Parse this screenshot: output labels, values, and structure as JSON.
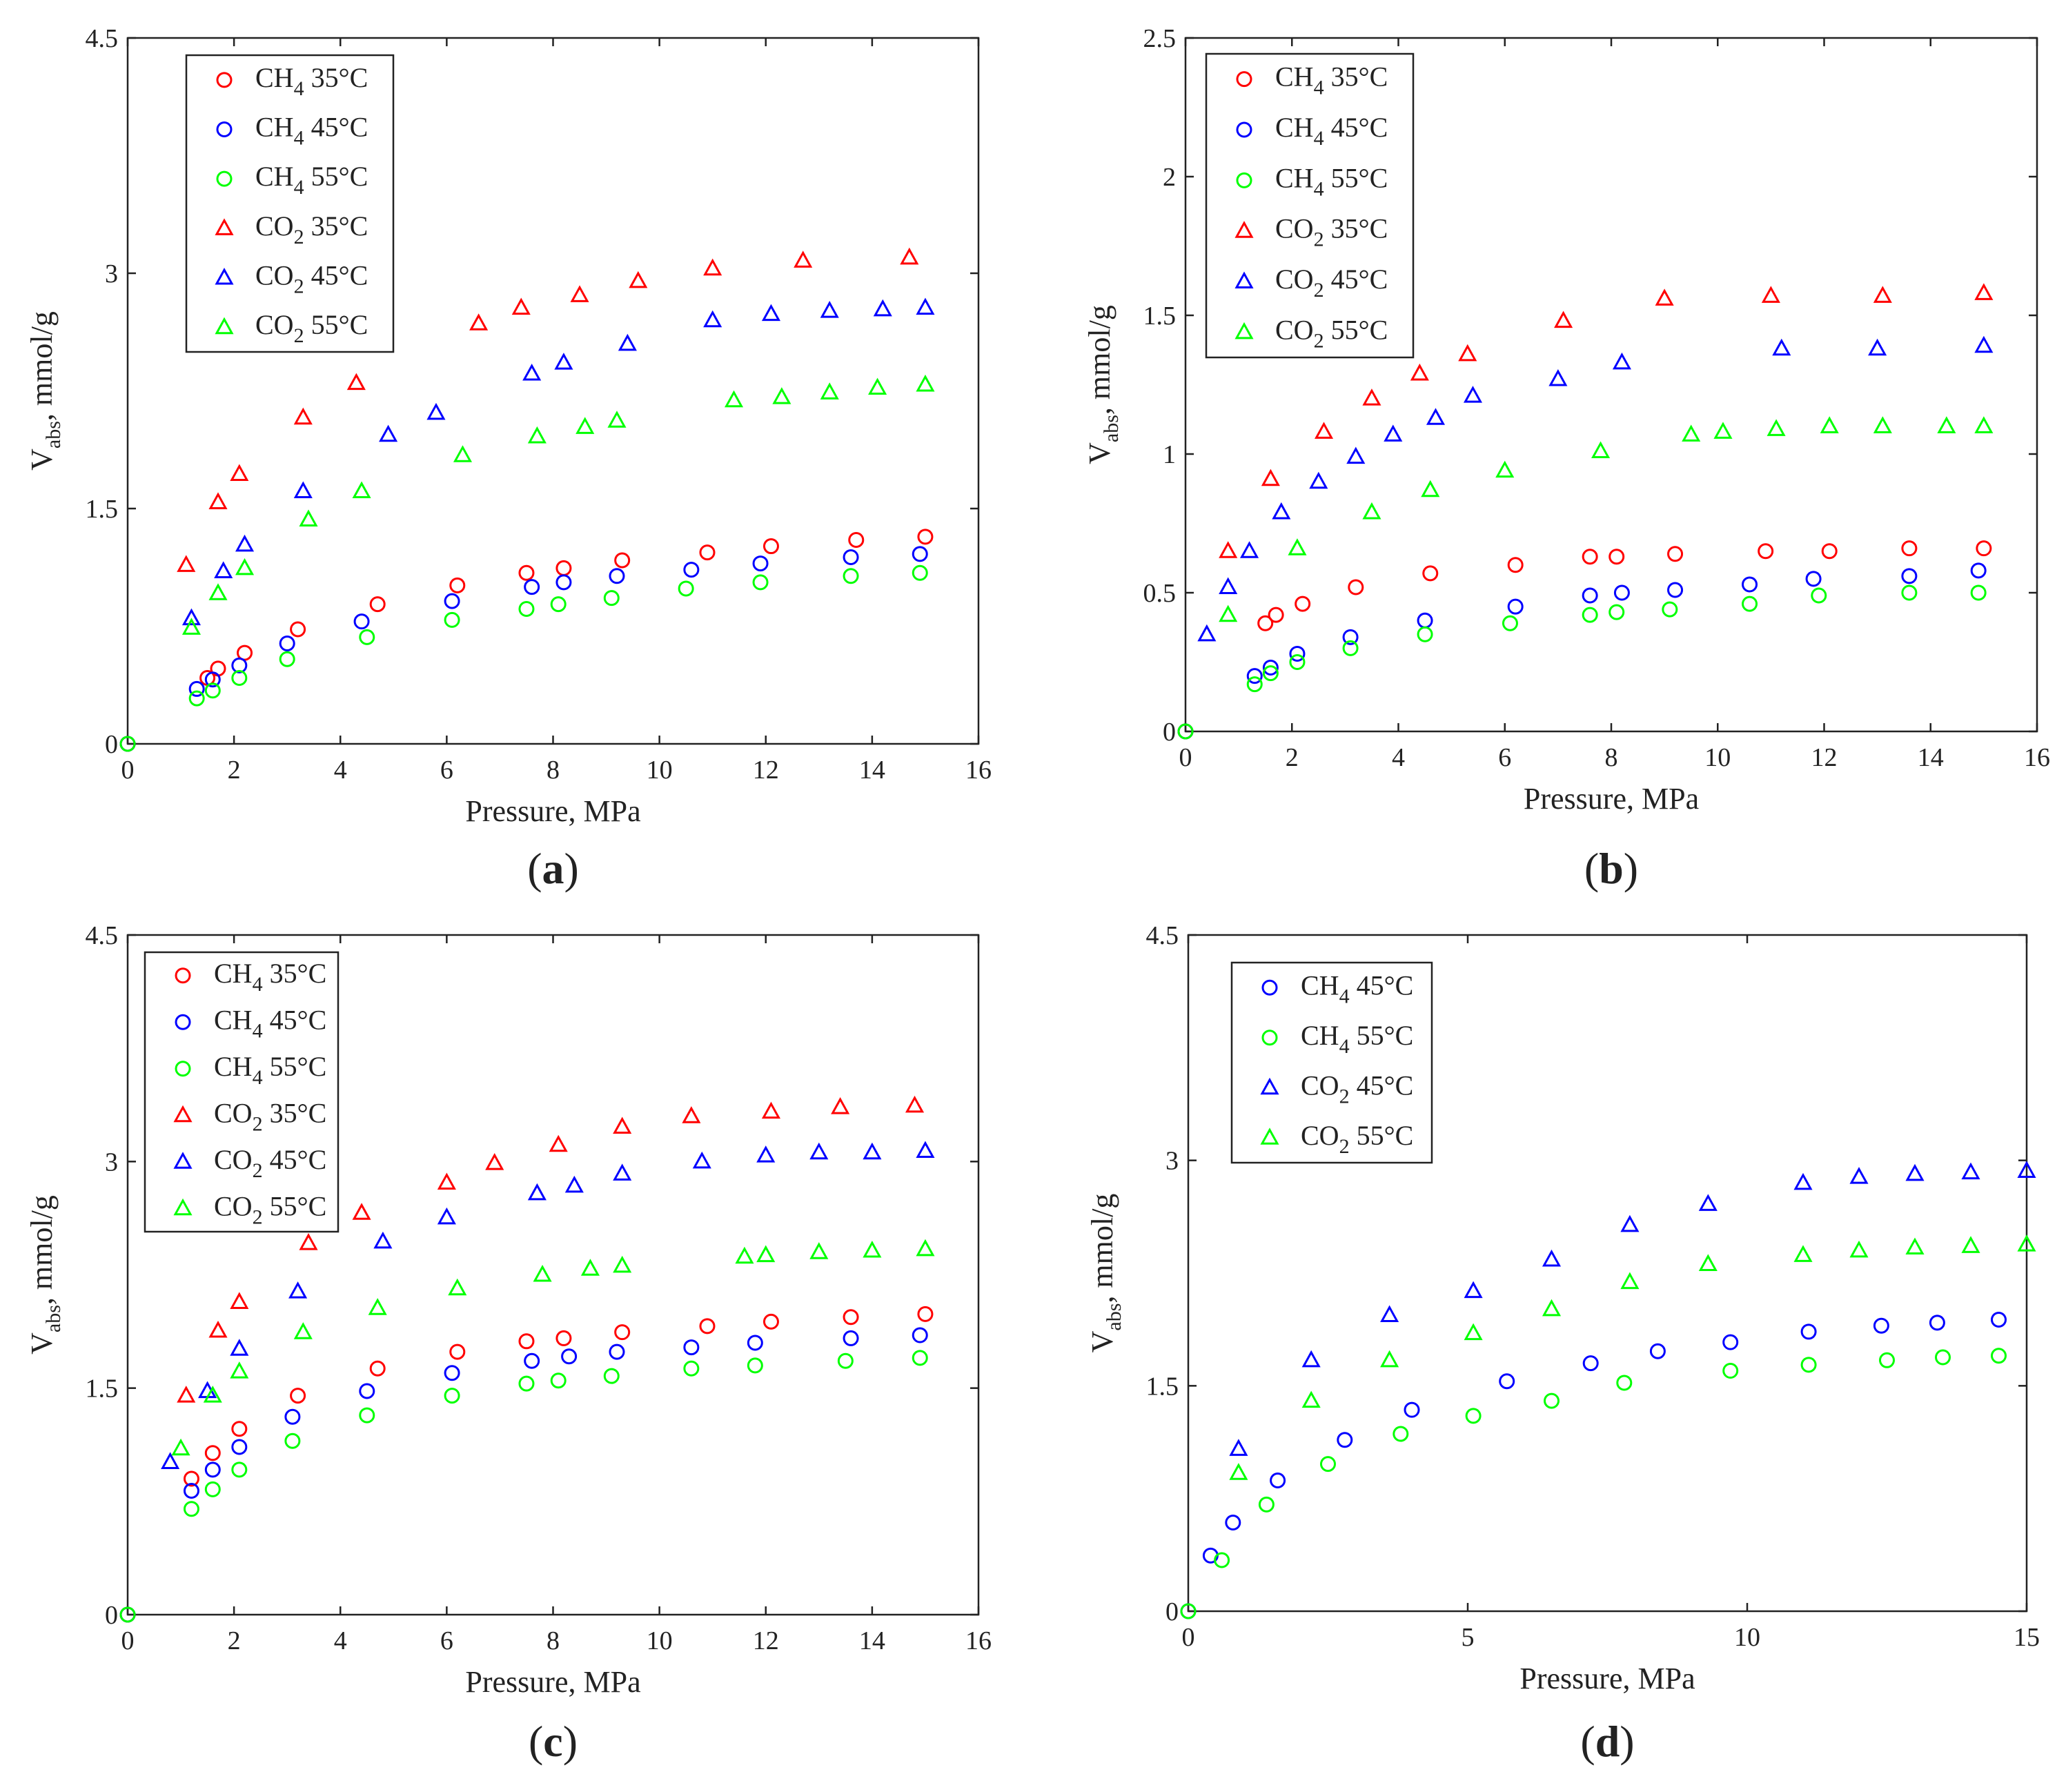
{
  "colors": {
    "red": "#ff0000",
    "blue": "#0000ff",
    "green": "#00ff00"
  },
  "chart_data": [
    {
      "type": "scatter",
      "panel_label": "a",
      "xlabel": "Pressure, MPa",
      "ylabel_main": "V",
      "ylabel_sub": "abs",
      "ylabel_rest": ", mmol/g",
      "xlim": [
        0,
        16
      ],
      "ylim": [
        0,
        4.5
      ],
      "xticks": [
        0,
        2,
        4,
        6,
        8,
        10,
        12,
        14,
        16
      ],
      "xtick_labels": [
        "0",
        "2",
        "4",
        "6",
        "8",
        "10",
        "12",
        "14",
        "16"
      ],
      "yticks": [
        0,
        1.5,
        3,
        4.5
      ],
      "ytick_labels": [
        "0",
        "1.5",
        "3",
        "4.5"
      ],
      "legend_position": "top-left",
      "series": [
        {
          "gas": "CH",
          "sub": "4",
          "temp": "35°C",
          "color": "red",
          "marker": "circle",
          "x": [
            0,
            1.5,
            1.7,
            2.2,
            3.2,
            4.7,
            6.2,
            7.5,
            8.2,
            9.3,
            10.9,
            12.1,
            13.7,
            15.0
          ],
          "y": [
            0,
            0.42,
            0.48,
            0.58,
            0.73,
            0.89,
            1.01,
            1.09,
            1.12,
            1.17,
            1.22,
            1.26,
            1.3,
            1.32
          ]
        },
        {
          "gas": "CH",
          "sub": "4",
          "temp": "45°C",
          "color": "blue",
          "marker": "circle",
          "x": [
            0,
            1.3,
            1.6,
            2.1,
            3.0,
            4.4,
            6.1,
            7.6,
            8.2,
            9.2,
            10.6,
            11.9,
            13.6,
            14.9
          ],
          "y": [
            0,
            0.35,
            0.41,
            0.5,
            0.64,
            0.78,
            0.91,
            1.0,
            1.03,
            1.07,
            1.11,
            1.15,
            1.19,
            1.21
          ]
        },
        {
          "gas": "CH",
          "sub": "4",
          "temp": "55°C",
          "color": "green",
          "marker": "circle",
          "x": [
            0,
            1.3,
            1.6,
            2.1,
            3.0,
            4.5,
            6.1,
            7.5,
            8.1,
            9.1,
            10.5,
            11.9,
            13.6,
            14.9
          ],
          "y": [
            0,
            0.29,
            0.34,
            0.42,
            0.54,
            0.68,
            0.79,
            0.86,
            0.89,
            0.93,
            0.99,
            1.03,
            1.07,
            1.09
          ]
        },
        {
          "gas": "CO",
          "sub": "2",
          "temp": "35°C",
          "color": "red",
          "marker": "triangle",
          "x": [
            1.1,
            1.7,
            2.1,
            3.3,
            4.3,
            6.6,
            7.4,
            8.5,
            9.6,
            11.0,
            12.7,
            14.7
          ],
          "y": [
            1.14,
            1.54,
            1.72,
            2.08,
            2.3,
            2.68,
            2.78,
            2.86,
            2.95,
            3.03,
            3.08,
            3.1
          ]
        },
        {
          "gas": "CO",
          "sub": "2",
          "temp": "45°C",
          "color": "blue",
          "marker": "triangle",
          "x": [
            1.2,
            1.8,
            2.2,
            3.3,
            4.9,
            5.8,
            7.6,
            8.2,
            9.4,
            11.0,
            12.1,
            13.2,
            14.2,
            15.0
          ],
          "y": [
            0.8,
            1.1,
            1.27,
            1.61,
            1.97,
            2.11,
            2.36,
            2.43,
            2.55,
            2.7,
            2.74,
            2.76,
            2.77,
            2.78
          ]
        },
        {
          "gas": "CO",
          "sub": "2",
          "temp": "55°C",
          "color": "green",
          "marker": "triangle",
          "x": [
            1.2,
            1.7,
            2.2,
            3.4,
            4.4,
            6.3,
            7.7,
            8.6,
            9.2,
            11.4,
            12.3,
            13.2,
            14.1,
            15.0
          ],
          "y": [
            0.74,
            0.96,
            1.12,
            1.43,
            1.61,
            1.84,
            1.96,
            2.02,
            2.06,
            2.19,
            2.21,
            2.24,
            2.27,
            2.29
          ]
        }
      ]
    },
    {
      "type": "scatter",
      "panel_label": "b",
      "xlabel": "Pressure, MPa",
      "ylabel_main": "V",
      "ylabel_sub": "abs",
      "ylabel_rest": ", mmol/g",
      "xlim": [
        0,
        16
      ],
      "ylim": [
        0,
        2.5
      ],
      "xticks": [
        0,
        2,
        4,
        6,
        8,
        10,
        12,
        14,
        16
      ],
      "xtick_labels": [
        "0",
        "2",
        "4",
        "6",
        "8",
        "10",
        "12",
        "14",
        "16"
      ],
      "yticks": [
        0,
        0.5,
        1,
        1.5,
        2,
        2.5
      ],
      "ytick_labels": [
        "0",
        "0.5",
        "1",
        "1.5",
        "2",
        "2.5"
      ],
      "legend_position": "top-left",
      "series": [
        {
          "gas": "CH",
          "sub": "4",
          "temp": "35°C",
          "color": "red",
          "marker": "circle",
          "x": [
            0,
            1.5,
            1.7,
            2.2,
            3.2,
            4.6,
            6.2,
            7.6,
            8.1,
            9.2,
            10.9,
            12.1,
            13.6,
            15.0
          ],
          "y": [
            0,
            0.39,
            0.42,
            0.46,
            0.52,
            0.57,
            0.6,
            0.63,
            0.63,
            0.64,
            0.65,
            0.65,
            0.66,
            0.66
          ]
        },
        {
          "gas": "CH",
          "sub": "4",
          "temp": "45°C",
          "color": "blue",
          "marker": "circle",
          "x": [
            0,
            1.3,
            1.6,
            2.1,
            3.1,
            4.5,
            6.2,
            7.6,
            8.2,
            9.2,
            10.6,
            11.8,
            13.6,
            14.9
          ],
          "y": [
            0,
            0.2,
            0.23,
            0.28,
            0.34,
            0.4,
            0.45,
            0.49,
            0.5,
            0.51,
            0.53,
            0.55,
            0.56,
            0.58
          ]
        },
        {
          "gas": "CH",
          "sub": "4",
          "temp": "55°C",
          "color": "green",
          "marker": "circle",
          "x": [
            0,
            1.3,
            1.6,
            2.1,
            3.1,
            4.5,
            6.1,
            7.6,
            8.1,
            9.1,
            10.6,
            11.9,
            13.6,
            14.9
          ],
          "y": [
            0,
            0.17,
            0.21,
            0.25,
            0.3,
            0.35,
            0.39,
            0.42,
            0.43,
            0.44,
            0.46,
            0.49,
            0.5,
            0.5
          ]
        },
        {
          "gas": "CO",
          "sub": "2",
          "temp": "35°C",
          "color": "red",
          "marker": "triangle",
          "x": [
            0.8,
            1.6,
            2.6,
            3.5,
            4.4,
            5.3,
            7.1,
            9.0,
            11.0,
            13.1,
            15.0
          ],
          "y": [
            0.65,
            0.91,
            1.08,
            1.2,
            1.29,
            1.36,
            1.48,
            1.56,
            1.57,
            1.57,
            1.58
          ]
        },
        {
          "gas": "CO",
          "sub": "2",
          "temp": "45°C",
          "color": "blue",
          "marker": "triangle",
          "x": [
            0.4,
            0.8,
            1.2,
            1.8,
            2.5,
            3.2,
            3.9,
            4.7,
            5.4,
            7.0,
            8.2,
            11.2,
            13.0,
            15.0
          ],
          "y": [
            0.35,
            0.52,
            0.65,
            0.79,
            0.9,
            0.99,
            1.07,
            1.13,
            1.21,
            1.27,
            1.33,
            1.38,
            1.38,
            1.39
          ]
        },
        {
          "gas": "CO",
          "sub": "2",
          "temp": "55°C",
          "color": "green",
          "marker": "triangle",
          "x": [
            0.8,
            2.1,
            3.5,
            4.6,
            6.0,
            7.8,
            9.5,
            10.1,
            11.1,
            12.1,
            13.1,
            14.3,
            15.0
          ],
          "y": [
            0.42,
            0.66,
            0.79,
            0.87,
            0.94,
            1.01,
            1.07,
            1.08,
            1.09,
            1.1,
            1.1,
            1.1,
            1.1
          ]
        }
      ]
    },
    {
      "type": "scatter",
      "panel_label": "c",
      "xlabel": "Pressure, MPa",
      "ylabel_main": "V",
      "ylabel_sub": "abs",
      "ylabel_rest": ", mmol/g",
      "xlim": [
        0,
        16
      ],
      "ylim": [
        0,
        4.5
      ],
      "xticks": [
        0,
        2,
        4,
        6,
        8,
        10,
        12,
        14,
        16
      ],
      "xtick_labels": [
        "0",
        "2",
        "4",
        "6",
        "8",
        "10",
        "12",
        "14",
        "16"
      ],
      "yticks": [
        0,
        1.5,
        3,
        4.5
      ],
      "ytick_labels": [
        "0",
        "1.5",
        "3",
        "4.5"
      ],
      "legend_position": "top-left",
      "series": [
        {
          "gas": "CH",
          "sub": "4",
          "temp": "35°C",
          "color": "red",
          "marker": "circle",
          "x": [
            0,
            1.2,
            1.6,
            2.1,
            3.2,
            4.7,
            6.2,
            7.5,
            8.2,
            9.3,
            10.9,
            12.1,
            13.6,
            15.0
          ],
          "y": [
            0,
            0.9,
            1.07,
            1.23,
            1.45,
            1.63,
            1.74,
            1.81,
            1.83,
            1.87,
            1.91,
            1.94,
            1.97,
            1.99
          ]
        },
        {
          "gas": "CH",
          "sub": "4",
          "temp": "45°C",
          "color": "blue",
          "marker": "circle",
          "x": [
            0,
            1.2,
            1.6,
            2.1,
            3.1,
            4.5,
            6.1,
            7.6,
            8.3,
            9.2,
            10.6,
            11.8,
            13.6,
            14.9
          ],
          "y": [
            0,
            0.82,
            0.96,
            1.11,
            1.31,
            1.48,
            1.6,
            1.68,
            1.71,
            1.74,
            1.77,
            1.8,
            1.83,
            1.85
          ]
        },
        {
          "gas": "CH",
          "sub": "4",
          "temp": "55°C",
          "color": "green",
          "marker": "circle",
          "x": [
            0,
            1.2,
            1.6,
            2.1,
            3.1,
            4.5,
            6.1,
            7.5,
            8.1,
            9.1,
            10.6,
            11.8,
            13.5,
            14.9
          ],
          "y": [
            0,
            0.7,
            0.83,
            0.96,
            1.15,
            1.32,
            1.45,
            1.53,
            1.55,
            1.58,
            1.63,
            1.65,
            1.68,
            1.7
          ]
        },
        {
          "gas": "CO",
          "sub": "2",
          "temp": "35°C",
          "color": "red",
          "marker": "triangle",
          "x": [
            1.1,
            1.7,
            2.1,
            3.4,
            4.4,
            6.0,
            6.9,
            8.1,
            9.3,
            10.6,
            12.1,
            13.4,
            14.8
          ],
          "y": [
            1.45,
            1.88,
            2.07,
            2.46,
            2.66,
            2.86,
            2.99,
            3.11,
            3.23,
            3.3,
            3.33,
            3.36,
            3.37
          ]
        },
        {
          "gas": "CO",
          "sub": "2",
          "temp": "45°C",
          "color": "blue",
          "marker": "triangle",
          "x": [
            0.8,
            1.5,
            2.1,
            3.2,
            4.8,
            6.0,
            7.7,
            8.4,
            9.3,
            10.8,
            12.0,
            13.0,
            14.0,
            15.0
          ],
          "y": [
            1.01,
            1.48,
            1.76,
            2.14,
            2.47,
            2.63,
            2.79,
            2.84,
            2.92,
            3.0,
            3.04,
            3.06,
            3.06,
            3.07
          ]
        },
        {
          "gas": "CO",
          "sub": "2",
          "temp": "55°C",
          "color": "green",
          "marker": "triangle",
          "x": [
            1.0,
            1.6,
            2.1,
            3.3,
            4.7,
            6.2,
            7.8,
            8.7,
            9.3,
            11.6,
            12.0,
            13.0,
            14.0,
            15.0
          ],
          "y": [
            1.1,
            1.45,
            1.61,
            1.87,
            2.03,
            2.16,
            2.25,
            2.29,
            2.31,
            2.37,
            2.38,
            2.4,
            2.41,
            2.42
          ]
        }
      ]
    },
    {
      "type": "scatter",
      "panel_label": "d",
      "xlabel": "Pressure, MPa",
      "ylabel_main": "V",
      "ylabel_sub": "abs",
      "ylabel_rest": ", mmol/g",
      "xlim": [
        0,
        15
      ],
      "ylim": [
        0,
        4.5
      ],
      "xticks": [
        0,
        5,
        10,
        15
      ],
      "xtick_labels": [
        "0",
        "5",
        "10",
        "15"
      ],
      "yticks": [
        0,
        1.5,
        3,
        4.5
      ],
      "ytick_labels": [
        "0",
        "1.5",
        "3",
        "4.5"
      ],
      "legend_position": "top-left",
      "series": [
        {
          "gas": "CH",
          "sub": "4",
          "temp": "45°C",
          "color": "blue",
          "marker": "circle",
          "x": [
            0,
            0.4,
            0.8,
            1.6,
            2.8,
            4.0,
            5.7,
            7.2,
            8.4,
            9.7,
            11.1,
            12.4,
            13.4,
            14.5
          ],
          "y": [
            0,
            0.37,
            0.59,
            0.87,
            1.14,
            1.34,
            1.53,
            1.65,
            1.73,
            1.79,
            1.86,
            1.9,
            1.92,
            1.94
          ]
        },
        {
          "gas": "CH",
          "sub": "4",
          "temp": "55°C",
          "color": "green",
          "marker": "circle",
          "x": [
            0,
            0.6,
            1.4,
            2.5,
            3.8,
            5.1,
            6.5,
            7.8,
            9.7,
            11.1,
            12.5,
            13.5,
            14.5
          ],
          "y": [
            0,
            0.34,
            0.71,
            0.98,
            1.18,
            1.3,
            1.4,
            1.52,
            1.6,
            1.64,
            1.67,
            1.69,
            1.7
          ]
        },
        {
          "gas": "CO",
          "sub": "2",
          "temp": "45°C",
          "color": "blue",
          "marker": "triangle",
          "x": [
            0.9,
            2.2,
            3.6,
            5.1,
            6.5,
            7.9,
            9.3,
            11.0,
            12.0,
            13.0,
            14.0,
            15.0
          ],
          "y": [
            1.08,
            1.67,
            1.97,
            2.13,
            2.34,
            2.57,
            2.71,
            2.85,
            2.89,
            2.91,
            2.92,
            2.93
          ]
        },
        {
          "gas": "CO",
          "sub": "2",
          "temp": "55°C",
          "color": "green",
          "marker": "triangle",
          "x": [
            0.9,
            2.2,
            3.6,
            5.1,
            6.5,
            7.9,
            9.3,
            11.0,
            12.0,
            13.0,
            14.0,
            15.0
          ],
          "y": [
            0.92,
            1.4,
            1.67,
            1.85,
            2.01,
            2.19,
            2.31,
            2.37,
            2.4,
            2.42,
            2.43,
            2.44
          ]
        }
      ]
    }
  ]
}
